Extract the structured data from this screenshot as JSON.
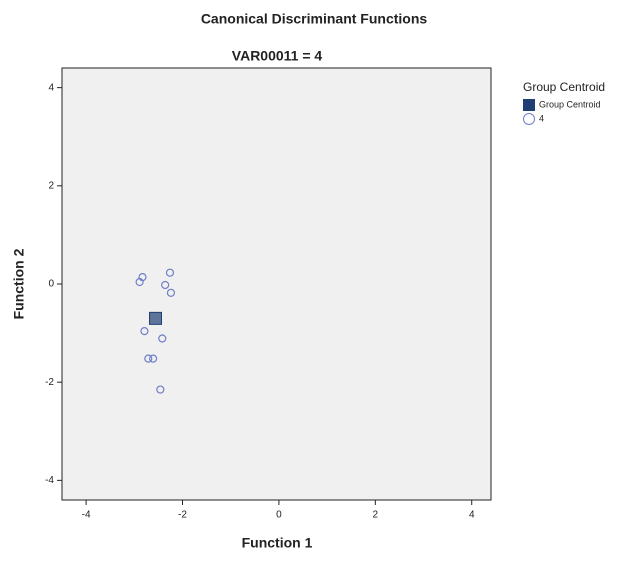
{
  "chart_data": {
    "type": "scatter",
    "title": "Canonical Discriminant Functions",
    "subtitle": "VAR00011 = 4",
    "x_label": "Function 1",
    "y_label": "Function 2",
    "legend_title": "Group Centroid",
    "xlim": [
      -4.5,
      4.4
    ],
    "ylim": [
      -4.4,
      4.4
    ],
    "xticks": [
      -4,
      -2,
      0,
      2,
      4
    ],
    "yticks": [
      -4,
      -2,
      0,
      2,
      4
    ],
    "series": [
      {
        "name": "Group Centroid",
        "color": "#1f3f73",
        "marker": "square",
        "x": [
          -2.56
        ],
        "y": [
          -0.7
        ]
      },
      {
        "name": "4",
        "color": "#6f7fc8",
        "marker": "circle",
        "x": [
          -2.83,
          -2.89,
          -2.26,
          -2.36,
          -2.24,
          -2.79,
          -2.42,
          -2.61,
          -2.71,
          -2.46
        ],
        "y": [
          0.14,
          0.04,
          0.23,
          -0.02,
          -0.18,
          -0.96,
          -1.11,
          -1.52,
          -1.52,
          -2.15
        ]
      }
    ]
  }
}
